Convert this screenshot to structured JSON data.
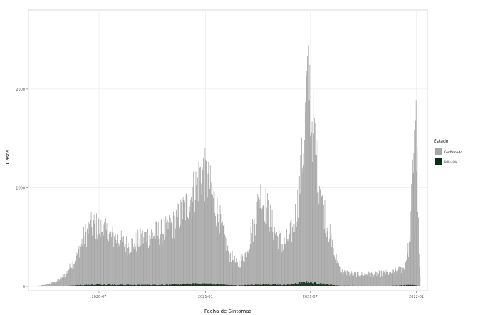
{
  "chart_data": {
    "type": "bar",
    "xlabel": "Fecha de Sintomas",
    "ylabel": "Casos",
    "x_range": [
      "2020-03-01",
      "2022-01-20"
    ],
    "ylim": [
      0,
      2800
    ],
    "x_ticks": [
      "2020-07",
      "2021-01",
      "2021-07",
      "2022-01"
    ],
    "y_ticks": [
      0,
      1000,
      2000
    ],
    "y_tick_labels": [
      "0",
      "1000",
      "2000"
    ],
    "grid": true,
    "legend": {
      "title": "Estado",
      "position": "right"
    },
    "series": [
      {
        "name": "Confirmado",
        "color": "#a6a6a6",
        "points": [
          [
            "2020-03-15",
            5
          ],
          [
            "2020-04-01",
            20
          ],
          [
            "2020-04-20",
            60
          ],
          [
            "2020-05-05",
            140
          ],
          [
            "2020-05-20",
            280
          ],
          [
            "2020-06-05",
            520
          ],
          [
            "2020-06-20",
            640
          ],
          [
            "2020-07-05",
            600
          ],
          [
            "2020-07-20",
            530
          ],
          [
            "2020-08-05",
            480
          ],
          [
            "2020-08-20",
            430
          ],
          [
            "2020-09-05",
            470
          ],
          [
            "2020-09-20",
            520
          ],
          [
            "2020-10-05",
            550
          ],
          [
            "2020-10-20",
            580
          ],
          [
            "2020-11-05",
            640
          ],
          [
            "2020-11-20",
            760
          ],
          [
            "2020-12-01",
            850
          ],
          [
            "2020-12-15",
            1050
          ],
          [
            "2020-12-25",
            1200
          ],
          [
            "2021-01-01",
            1150
          ],
          [
            "2021-01-10",
            1000
          ],
          [
            "2021-01-25",
            700
          ],
          [
            "2021-02-10",
            350
          ],
          [
            "2021-02-25",
            220
          ],
          [
            "2021-03-10",
            330
          ],
          [
            "2021-03-25",
            620
          ],
          [
            "2021-04-05",
            950
          ],
          [
            "2021-04-15",
            850
          ],
          [
            "2021-05-01",
            560
          ],
          [
            "2021-05-15",
            420
          ],
          [
            "2021-06-01",
            600
          ],
          [
            "2021-06-10",
            900
          ],
          [
            "2021-06-20",
            1500
          ],
          [
            "2021-06-27",
            2300
          ],
          [
            "2021-07-02",
            1900
          ],
          [
            "2021-07-10",
            1400
          ],
          [
            "2021-07-25",
            800
          ],
          [
            "2021-08-10",
            350
          ],
          [
            "2021-08-25",
            150
          ],
          [
            "2021-09-15",
            130
          ],
          [
            "2021-10-15",
            130
          ],
          [
            "2021-11-15",
            140
          ],
          [
            "2021-12-10",
            190
          ],
          [
            "2021-12-20",
            450
          ],
          [
            "2021-12-26",
            1300
          ],
          [
            "2021-12-29",
            1950
          ],
          [
            "2022-01-01",
            1500
          ],
          [
            "2022-01-05",
            300
          ],
          [
            "2022-01-08",
            0
          ]
        ]
      },
      {
        "name": "Fallecido",
        "color": "#0d2e16",
        "points": [
          [
            "2020-03-15",
            0
          ],
          [
            "2020-05-01",
            5
          ],
          [
            "2020-06-01",
            15
          ],
          [
            "2020-07-01",
            20
          ],
          [
            "2020-09-01",
            15
          ],
          [
            "2020-11-01",
            18
          ],
          [
            "2020-12-25",
            30
          ],
          [
            "2021-01-15",
            25
          ],
          [
            "2021-02-25",
            10
          ],
          [
            "2021-04-10",
            22
          ],
          [
            "2021-05-20",
            15
          ],
          [
            "2021-06-25",
            45
          ],
          [
            "2021-07-10",
            35
          ],
          [
            "2021-08-20",
            8
          ],
          [
            "2021-11-01",
            5
          ],
          [
            "2021-12-29",
            15
          ],
          [
            "2022-01-08",
            0
          ]
        ]
      }
    ]
  }
}
